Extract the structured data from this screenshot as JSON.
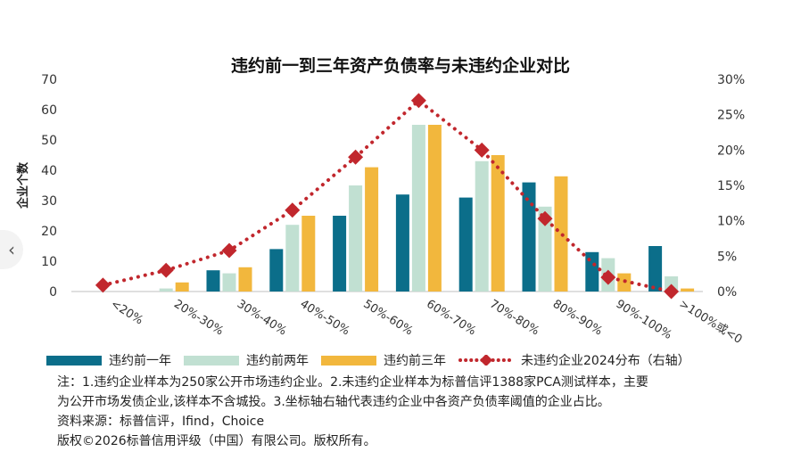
{
  "chart_data": {
    "type": "bar",
    "title": "违约前一到三年资产负债率与未违约企业对比",
    "ylabel": "企业个数",
    "ylim": [
      0,
      70
    ],
    "yticks": [
      0,
      10,
      20,
      30,
      40,
      50,
      60,
      70
    ],
    "y2lim": [
      0,
      30
    ],
    "y2ticks": [
      "0%",
      "5%",
      "10%",
      "15%",
      "20%",
      "25%",
      "30%"
    ],
    "categories": [
      "<20%",
      "20%-30%",
      "30%-40%",
      "40%-50%",
      "50%-60%",
      "60%-70%",
      "70%-80%",
      "80%-90%",
      "90%-100%",
      ">100%或<0"
    ],
    "series": [
      {
        "name": "违约前一年",
        "type": "bar",
        "color": "#0b6e8a",
        "values": [
          0,
          0,
          7,
          14,
          25,
          32,
          31,
          36,
          13,
          15
        ]
      },
      {
        "name": "违约前两年",
        "type": "bar",
        "color": "#c1e0d2",
        "values": [
          0,
          1,
          6,
          22,
          35,
          55,
          43,
          28,
          11,
          5
        ]
      },
      {
        "name": "违约前三年",
        "type": "bar",
        "color": "#f2b73d",
        "values": [
          0,
          3,
          8,
          25,
          41,
          55,
          45,
          38,
          6,
          1
        ]
      },
      {
        "name": "未违约企业2024分布（右轴）",
        "type": "line",
        "axis": "right",
        "color": "#c1272d",
        "values": [
          0.9,
          3.0,
          5.8,
          11.5,
          19.0,
          27.0,
          20.0,
          10.3,
          2.0,
          0.0
        ]
      }
    ]
  },
  "notes": {
    "line1": "注：1.违约企业样本为250家公开市场违约企业。2.未违约企业样本为标普信评1388家PCA测试样本，主要",
    "line2": "为公开市场发债企业,该样本不含城投。3.坐标轴右轴代表违约企业中各资产负债率阈值的企业占比。",
    "source": "资料来源：标普信评，Ifind，Choice",
    "copyright": "版权©2026标普信用评级（中国）有限公司。版权所有。"
  },
  "nav": {
    "prev_icon": "chevron-left-icon"
  }
}
